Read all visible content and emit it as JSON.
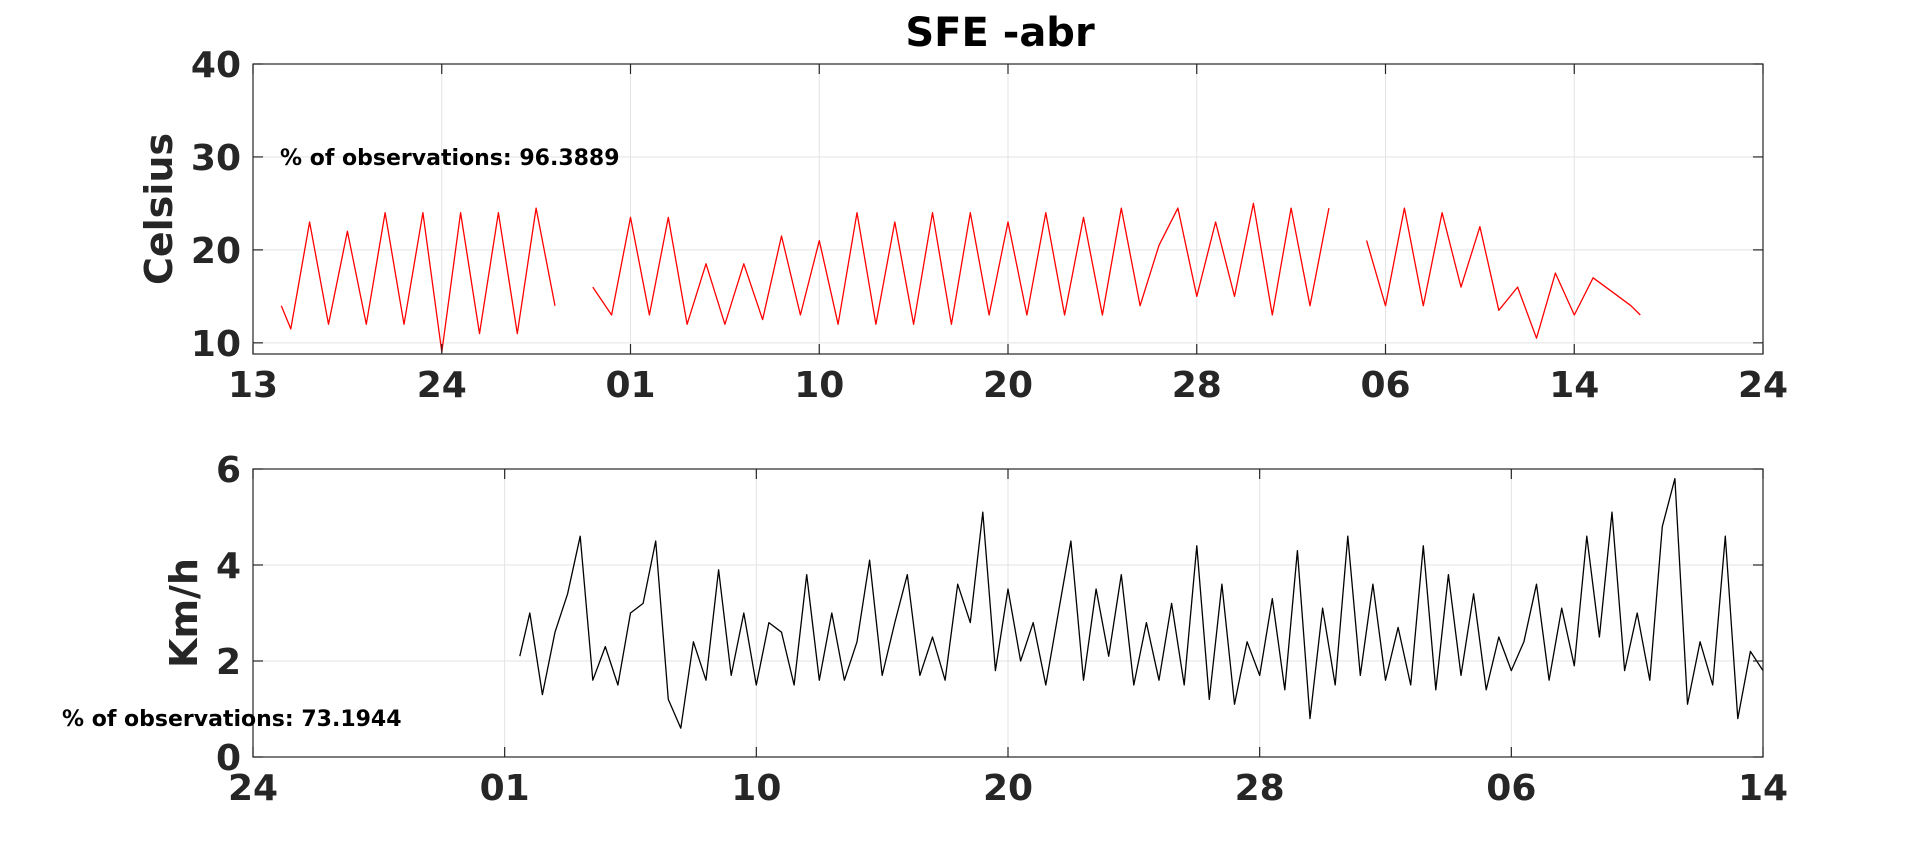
{
  "page": {
    "title": "SFE -abr"
  },
  "chart_data": [
    {
      "type": "line",
      "title": "SFE -abr",
      "xlabel": "",
      "ylabel": "Celsius",
      "ylim": [
        8.8,
        40
      ],
      "yticks": [
        10,
        20,
        30,
        40
      ],
      "xlim": [
        0,
        80
      ],
      "xticks": [
        0,
        10,
        20,
        30,
        40,
        50,
        60,
        70,
        80
      ],
      "xtick_labels": [
        "13",
        "24",
        "01",
        "10",
        "20",
        "28",
        "06",
        "14",
        "24"
      ],
      "grid": true,
      "annotation": "% of observations: 96.3889",
      "color": "#ff0000",
      "series": [
        {
          "x": [
            1.5,
            2,
            3,
            4,
            5,
            6,
            7,
            8,
            9,
            10,
            11,
            12,
            13,
            14,
            15,
            16,
            17,
            18,
            19,
            20,
            21,
            22,
            23,
            24,
            25,
            26,
            27,
            28,
            29,
            30,
            31,
            32,
            33,
            34,
            35,
            36,
            37,
            38,
            39,
            40,
            41,
            42,
            43,
            44,
            45,
            46,
            47,
            48,
            49,
            50,
            51,
            52,
            53,
            54,
            55,
            56,
            57,
            58,
            59,
            60,
            61,
            62,
            63,
            64,
            65,
            66,
            67,
            68,
            69,
            70,
            71,
            72,
            73,
            73.5
          ],
          "y": [
            14,
            11.5,
            23,
            12,
            22,
            12,
            24,
            12,
            24,
            9,
            24,
            11,
            24,
            11,
            24.5,
            14,
            null,
            16,
            13,
            23.5,
            13,
            23.5,
            12,
            18.5,
            12,
            18.5,
            12.5,
            21.5,
            13,
            21,
            12,
            24,
            12,
            23,
            12,
            24,
            12,
            24,
            13,
            23,
            13,
            24,
            13,
            23.5,
            13,
            24.5,
            14,
            20.5,
            24.5,
            15,
            23,
            15,
            25,
            13,
            24.5,
            14,
            24.5,
            null,
            21,
            14,
            24.5,
            14,
            24,
            16,
            22.5,
            13.5,
            16,
            10.5,
            17.5,
            13,
            17,
            15.5,
            14,
            13
          ]
        }
      ]
    },
    {
      "type": "line",
      "title": "",
      "xlabel": "",
      "ylabel": "Km/h",
      "ylim": [
        0,
        6
      ],
      "yticks": [
        0,
        2,
        4,
        6
      ],
      "xlim": [
        0,
        60
      ],
      "xticks": [
        0,
        10,
        20,
        30,
        40,
        50,
        60
      ],
      "xtick_labels": [
        "24",
        "01",
        "10",
        "20",
        "28",
        "06",
        "14"
      ],
      "grid": true,
      "annotation": "% of observations: 73.1944",
      "color": "#000000",
      "series": [
        {
          "x": [
            10.6,
            11,
            11.5,
            12,
            12.5,
            13,
            13.5,
            14,
            14.5,
            15,
            15.5,
            16,
            16.5,
            17,
            17.5,
            18,
            18.5,
            19,
            19.5,
            20,
            20.5,
            21,
            21.5,
            22,
            22.5,
            23,
            23.5,
            24,
            24.5,
            25,
            25.5,
            26,
            26.5,
            27,
            27.5,
            28,
            28.5,
            29,
            29.5,
            30,
            30.5,
            31,
            31.5,
            32,
            32.5,
            33,
            33.5,
            34,
            34.5,
            35,
            35.5,
            36,
            36.5,
            37,
            37.5,
            38,
            38.5,
            39,
            39.5,
            40,
            40.5,
            41,
            41.5,
            42,
            42.5,
            43,
            43.5,
            44,
            44.5,
            45,
            45.5,
            46,
            46.5,
            47,
            47.5,
            48,
            48.5,
            49,
            49.5,
            50,
            50.5,
            51,
            51.5,
            52,
            52.5,
            53,
            53.5,
            54,
            54.5,
            55,
            55.5,
            56,
            56.5,
            57,
            57.5,
            58,
            58.5,
            59,
            59.5,
            60
          ],
          "y": [
            2.1,
            3,
            1.3,
            2.6,
            3.4,
            4.6,
            1.6,
            2.3,
            1.5,
            3,
            3.2,
            4.5,
            1.2,
            0.6,
            2.4,
            1.6,
            3.9,
            1.7,
            3,
            1.5,
            2.8,
            2.6,
            1.5,
            3.8,
            1.6,
            3,
            1.6,
            2.4,
            4.1,
            1.7,
            2.8,
            3.8,
            1.7,
            2.5,
            1.6,
            3.6,
            2.8,
            5.1,
            1.8,
            3.5,
            2,
            2.8,
            1.5,
            3,
            4.5,
            1.6,
            3.5,
            2.1,
            3.8,
            1.5,
            2.8,
            1.6,
            3.2,
            1.5,
            4.4,
            1.2,
            3.6,
            1.1,
            2.4,
            1.7,
            3.3,
            1.4,
            4.3,
            0.8,
            3.1,
            1.5,
            4.6,
            1.7,
            3.6,
            1.6,
            2.7,
            1.5,
            4.4,
            1.4,
            3.8,
            1.7,
            3.4,
            1.4,
            2.5,
            1.8,
            2.4,
            3.6,
            1.6,
            3.1,
            1.9,
            4.6,
            2.5,
            5.1,
            1.8,
            3,
            1.6,
            4.8,
            5.8,
            1.1,
            2.4,
            1.5,
            4.6,
            0.8,
            2.2,
            1.8
          ]
        }
      ]
    }
  ]
}
